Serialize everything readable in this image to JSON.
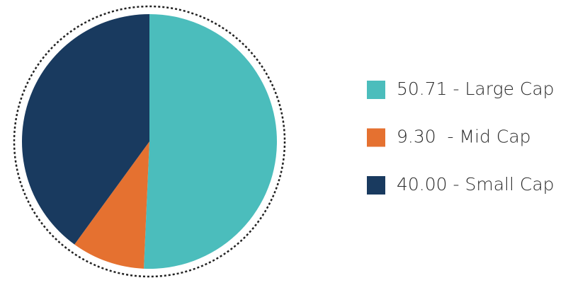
{
  "chart_data": {
    "type": "pie",
    "categories": [
      "50.71 - Large Cap",
      "9.30  - Mid Cap",
      "40.00 - Small Cap"
    ],
    "values": [
      50.71,
      9.3,
      40.0
    ],
    "colors": [
      "#4bbdbc",
      "#e57130",
      "#193a5f"
    ]
  }
}
